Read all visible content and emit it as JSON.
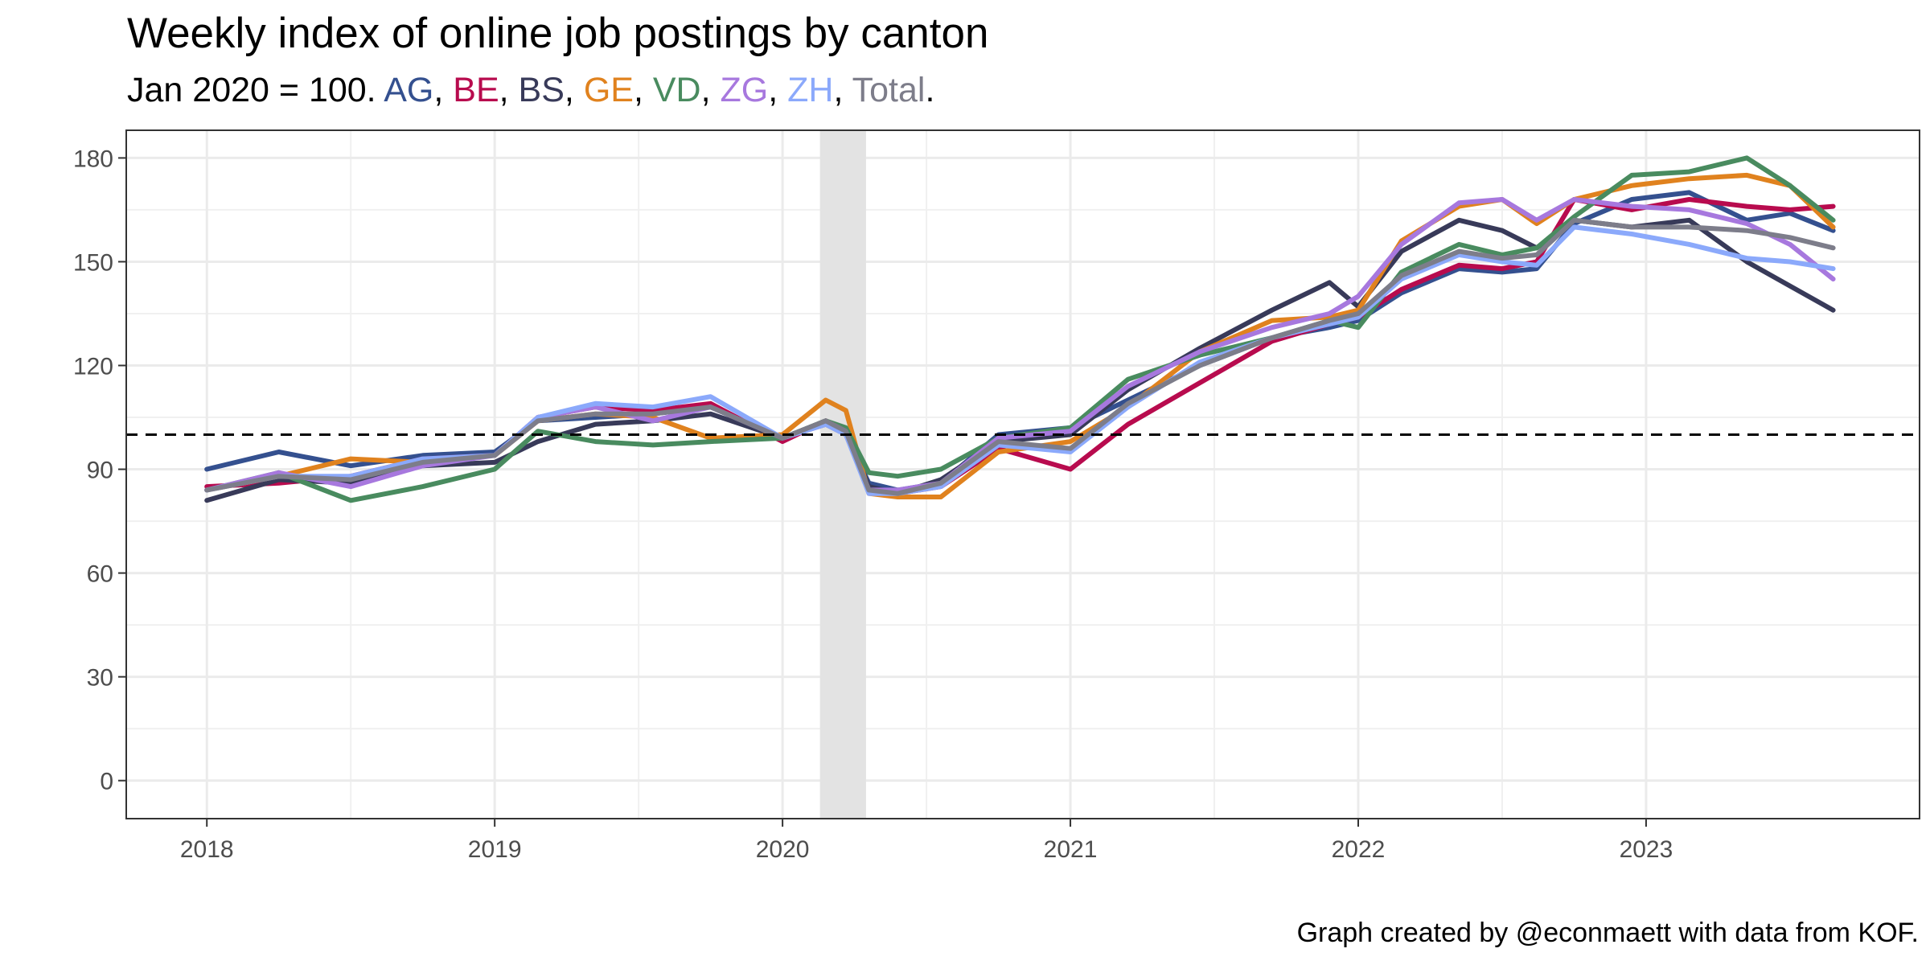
{
  "title": "Weekly index of online job postings by canton",
  "subtitle_prefix": "Jan 2020 = 100.",
  "subtitle_end": ".",
  "caption": "Graph created by @econmaett with data from KOF.",
  "chart_data": {
    "type": "line",
    "title": "Weekly index of online job postings by canton",
    "subtitle": "Jan 2020 = 100. AG, BE, BS, GE, VD, ZG, ZH, Total.",
    "xlabel": "",
    "ylabel": "",
    "xlim": [
      2017.72,
      2023.95
    ],
    "ylim": [
      -11,
      188
    ],
    "x_ticks": [
      2018,
      2019,
      2020,
      2021,
      2022,
      2023
    ],
    "x_tick_labels": [
      "2018",
      "2019",
      "2020",
      "2021",
      "2022",
      "2023"
    ],
    "y_ticks": [
      0,
      30,
      60,
      90,
      120,
      150,
      180
    ],
    "y_tick_labels": [
      "0",
      "30",
      "60",
      "90",
      "120",
      "150",
      "180"
    ],
    "grid": true,
    "reference_line": {
      "y": 100,
      "style": "dashed",
      "color": "#000000"
    },
    "shaded_period": {
      "x_start": 2020.13,
      "x_end": 2020.29,
      "color": "#e3e3e3"
    },
    "legend": "inline-subtitle",
    "x": [
      2018.0,
      2018.25,
      2018.5,
      2018.75,
      2019.0,
      2019.15,
      2019.35,
      2019.55,
      2019.75,
      2020.0,
      2020.15,
      2020.22,
      2020.3,
      2020.4,
      2020.55,
      2020.75,
      2021.0,
      2021.2,
      2021.45,
      2021.7,
      2021.9,
      2022.0,
      2022.15,
      2022.35,
      2022.5,
      2022.62,
      2022.75,
      2022.95,
      2023.15,
      2023.35,
      2023.5,
      2023.65
    ],
    "series": [
      {
        "name": "AG",
        "color": "#34508f",
        "values": [
          90,
          95,
          91,
          94,
          95,
          104,
          105,
          106,
          108,
          99,
          103,
          100,
          86,
          84,
          86,
          100,
          102,
          110,
          120,
          128,
          131,
          133,
          141,
          148,
          147,
          148,
          161,
          168,
          170,
          162,
          164,
          159
        ]
      },
      {
        "name": "BE",
        "color": "#b80b4e",
        "values": [
          85,
          86,
          88,
          93,
          94,
          105,
          108,
          107,
          109,
          98,
          104,
          101,
          84,
          83,
          85,
          96,
          90,
          103,
          115,
          127,
          132,
          134,
          142,
          149,
          148,
          150,
          168,
          165,
          168,
          166,
          165,
          166
        ]
      },
      {
        "name": "BS",
        "color": "#383a59",
        "values": [
          81,
          87,
          86,
          91,
          92,
          98,
          103,
          104,
          106,
          99,
          104,
          101,
          85,
          83,
          87,
          98,
          100,
          113,
          125,
          136,
          144,
          137,
          153,
          162,
          159,
          154,
          162,
          160,
          162,
          150,
          143,
          136
        ]
      },
      {
        "name": "GE",
        "color": "#e0821e",
        "values": [
          84,
          88,
          93,
          92,
          94,
          104,
          106,
          105,
          99,
          100,
          110,
          107,
          83,
          82,
          82,
          95,
          98,
          108,
          124,
          133,
          134,
          136,
          156,
          166,
          168,
          161,
          168,
          172,
          174,
          175,
          172,
          160
        ]
      },
      {
        "name": "VD",
        "color": "#498b5f",
        "values": [
          84,
          89,
          81,
          85,
          90,
          101,
          98,
          97,
          98,
          99,
          104,
          102,
          89,
          88,
          90,
          99,
          102,
          116,
          123,
          128,
          133,
          131,
          147,
          155,
          152,
          154,
          163,
          175,
          176,
          180,
          172,
          162
        ]
      },
      {
        "name": "ZG",
        "color": "#a778de",
        "values": [
          84,
          89,
          85,
          91,
          94,
          105,
          108,
          104,
          108,
          99,
          103,
          100,
          84,
          84,
          86,
          99,
          101,
          114,
          124,
          131,
          135,
          140,
          155,
          167,
          168,
          162,
          168,
          166,
          165,
          161,
          155,
          145
        ]
      },
      {
        "name": "ZH",
        "color": "#8ba9fb",
        "values": [
          84,
          88,
          88,
          93,
          94,
          105,
          109,
          108,
          111,
          99,
          103,
          100,
          83,
          83,
          85,
          97,
          95,
          108,
          121,
          128,
          132,
          134,
          145,
          152,
          150,
          149,
          160,
          158,
          155,
          151,
          150,
          148
        ]
      },
      {
        "name": "Total",
        "color": "#7d7d8a",
        "values": [
          84,
          88,
          87,
          92,
          94,
          104,
          106,
          106,
          108,
          99,
          104,
          101,
          84,
          83,
          86,
          98,
          96,
          109,
          120,
          128,
          133,
          135,
          146,
          153,
          151,
          152,
          162,
          160,
          160,
          159,
          157,
          154
        ]
      }
    ]
  }
}
